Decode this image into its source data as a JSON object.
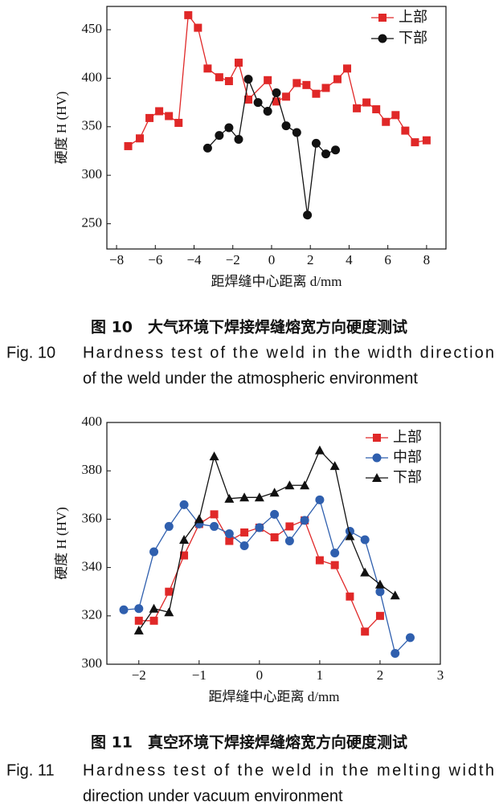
{
  "chart_data": [
    {
      "type": "line",
      "ylabel": "硬度 H (HV)",
      "xlabel": "距焊缝中心距离 d/mm",
      "xlim": [
        -8.5,
        9
      ],
      "xticks": [
        {
          "value": -8,
          "label": "−8"
        },
        {
          "value": -6,
          "label": "−6"
        },
        {
          "value": -4,
          "label": "−4"
        },
        {
          "value": -2,
          "label": "−2"
        },
        0,
        2,
        4,
        6,
        8
      ],
      "ylim": [
        224,
        474
      ],
      "yticks": [
        250,
        300,
        350,
        400,
        450
      ],
      "caption_cn": "图 10　大气环境下焊接焊缝熔宽方向硬度测试",
      "caption_en_label": "Fig. 10",
      "caption_en_lines": [
        "Hardness test of the weld in the width direction",
        "of the weld under the atmospheric environment"
      ],
      "series": [
        {
          "name": "上部",
          "color": "#e02828",
          "marker": "square",
          "x": [
            -7.4,
            -6.8,
            -6.3,
            -5.8,
            -5.3,
            -4.8,
            -4.3,
            -3.8,
            -3.3,
            -2.7,
            -2.2,
            -1.7,
            -1.2,
            -0.2,
            0.25,
            0.75,
            1.3,
            1.8,
            2.3,
            2.8,
            3.4,
            3.9,
            4.4,
            4.9,
            5.4,
            5.9,
            6.4,
            6.9,
            7.4,
            8.0
          ],
          "values": [
            330,
            338,
            359,
            366,
            361,
            354,
            465,
            452,
            410,
            401,
            397,
            416,
            378,
            398,
            376,
            381,
            395,
            393,
            384,
            390,
            399,
            410,
            369,
            375,
            368,
            355,
            362,
            346,
            334,
            336
          ]
        },
        {
          "name": "下部",
          "color": "#111111",
          "marker": "circle",
          "x": [
            -3.3,
            -2.7,
            -2.2,
            -1.7,
            -1.2,
            -0.7,
            -0.2,
            0.25,
            0.75,
            1.3,
            1.85,
            2.3,
            2.8,
            3.3
          ],
          "values": [
            328,
            341,
            349,
            337,
            399,
            375,
            366,
            385,
            351,
            344,
            259,
            333,
            322,
            326
          ]
        }
      ]
    },
    {
      "type": "line",
      "ylabel": "硬度 H (HV)",
      "xlabel": "距焊缝中心距离 d/mm",
      "xlim": [
        -2.53,
        3
      ],
      "xticks": [
        {
          "value": -2,
          "label": "−2"
        },
        {
          "value": -1,
          "label": "−1"
        },
        0,
        1,
        2,
        3
      ],
      "ylim": [
        300,
        400
      ],
      "yticks": [
        300,
        320,
        340,
        360,
        380,
        400
      ],
      "caption_cn": "图 11　真空环境下焊接焊缝熔宽方向硬度测试",
      "caption_en_label": "Fig. 11",
      "caption_en_lines": [
        "Hardness test of the weld in the melting width",
        "direction under vacuum environment"
      ],
      "series": [
        {
          "name": "上部",
          "color": "#e02828",
          "marker": "square",
          "x": [
            -2,
            -1.75,
            -1.5,
            -1.25,
            -1,
            -0.75,
            -0.5,
            -0.25,
            0,
            0.25,
            0.5,
            0.75,
            1,
            1.25,
            1.5,
            1.75,
            2
          ],
          "values": [
            318,
            318,
            330,
            345,
            358,
            362,
            351,
            354.5,
            356.5,
            352.5,
            357,
            359.5,
            343,
            341,
            328,
            313.5,
            320
          ]
        },
        {
          "name": "中部",
          "color": "#2f5fae",
          "marker": "circle",
          "x": [
            -2.25,
            -2,
            -1.75,
            -1.5,
            -1.25,
            -1,
            -0.75,
            -0.5,
            -0.25,
            0,
            0.25,
            0.5,
            0.75,
            1,
            1.25,
            1.5,
            1.75,
            2,
            2.25,
            2.5
          ],
          "values": [
            322.5,
            323,
            346.5,
            357,
            366,
            358,
            357,
            354,
            349,
            356.5,
            362,
            351,
            359.5,
            368,
            346,
            355,
            351.5,
            330,
            304.5,
            311
          ]
        },
        {
          "name": "下部",
          "color": "#111111",
          "marker": "triangle",
          "x": [
            -2,
            -1.75,
            -1.5,
            -1.25,
            -1,
            -0.75,
            -0.5,
            -0.25,
            0,
            0.25,
            0.5,
            0.75,
            1,
            1.25,
            1.5,
            1.75,
            2,
            2.25
          ],
          "values": [
            314,
            323,
            321.5,
            351.5,
            360,
            386,
            368.5,
            369,
            369,
            371,
            374,
            374,
            388.5,
            382,
            353,
            338,
            333,
            328.5
          ]
        }
      ]
    }
  ]
}
